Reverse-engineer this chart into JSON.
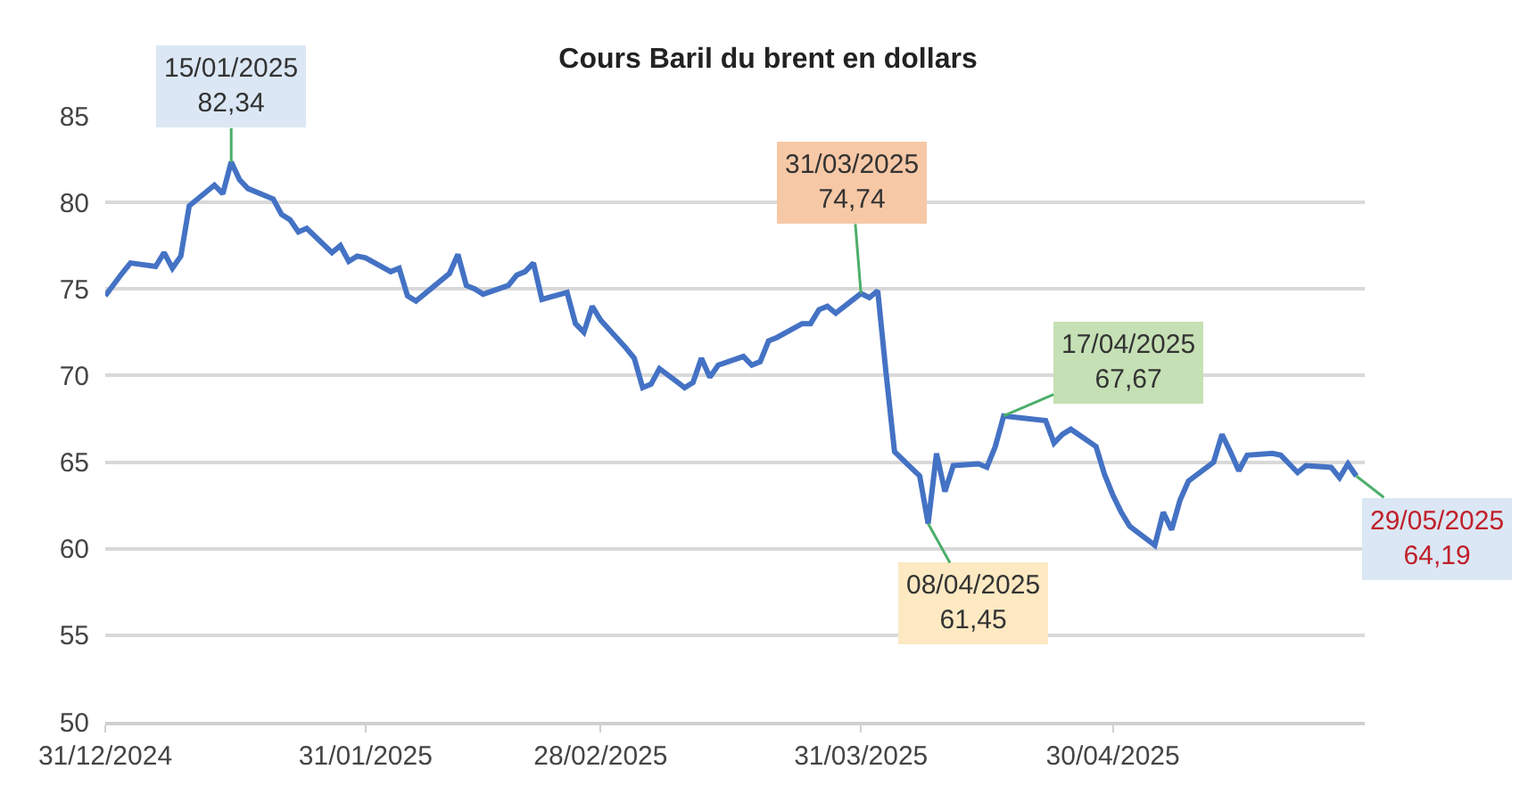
{
  "chart_data": {
    "type": "line",
    "title": "Cours Baril du brent en dollars",
    "x": [
      "2024-12-31",
      "2025-01-02",
      "2025-01-03",
      "2025-01-06",
      "2025-01-07",
      "2025-01-08",
      "2025-01-09",
      "2025-01-10",
      "2025-01-13",
      "2025-01-14",
      "2025-01-15",
      "2025-01-16",
      "2025-01-17",
      "2025-01-20",
      "2025-01-21",
      "2025-01-22",
      "2025-01-23",
      "2025-01-24",
      "2025-01-27",
      "2025-01-28",
      "2025-01-29",
      "2025-01-30",
      "2025-01-31",
      "2025-02-03",
      "2025-02-04",
      "2025-02-05",
      "2025-02-06",
      "2025-02-07",
      "2025-02-10",
      "2025-02-11",
      "2025-02-12",
      "2025-02-13",
      "2025-02-14",
      "2025-02-17",
      "2025-02-18",
      "2025-02-19",
      "2025-02-20",
      "2025-02-21",
      "2025-02-24",
      "2025-02-25",
      "2025-02-26",
      "2025-02-27",
      "2025-02-28",
      "2025-03-03",
      "2025-03-04",
      "2025-03-05",
      "2025-03-06",
      "2025-03-07",
      "2025-03-10",
      "2025-03-11",
      "2025-03-12",
      "2025-03-13",
      "2025-03-14",
      "2025-03-17",
      "2025-03-18",
      "2025-03-19",
      "2025-03-20",
      "2025-03-21",
      "2025-03-24",
      "2025-03-25",
      "2025-03-26",
      "2025-03-27",
      "2025-03-28",
      "2025-03-31",
      "2025-04-01",
      "2025-04-02",
      "2025-04-03",
      "2025-04-04",
      "2025-04-07",
      "2025-04-08",
      "2025-04-09",
      "2025-04-10",
      "2025-04-11",
      "2025-04-14",
      "2025-04-15",
      "2025-04-16",
      "2025-04-17",
      "2025-04-22",
      "2025-04-23",
      "2025-04-24",
      "2025-04-25",
      "2025-04-28",
      "2025-04-29",
      "2025-04-30",
      "2025-05-01",
      "2025-05-02",
      "2025-05-05",
      "2025-05-06",
      "2025-05-07",
      "2025-05-08",
      "2025-05-09",
      "2025-05-12",
      "2025-05-13",
      "2025-05-14",
      "2025-05-15",
      "2025-05-16",
      "2025-05-19",
      "2025-05-20",
      "2025-05-21",
      "2025-05-22",
      "2025-05-23",
      "2025-05-26",
      "2025-05-27",
      "2025-05-28",
      "2025-05-29"
    ],
    "series": [
      {
        "color": "#4472c4",
        "values": [
          74.6,
          75.9,
          76.5,
          76.3,
          77.1,
          76.2,
          76.9,
          79.8,
          81.0,
          80.5,
          82.34,
          81.3,
          80.8,
          80.2,
          79.3,
          79.0,
          78.3,
          78.5,
          77.1,
          77.5,
          76.6,
          76.9,
          76.8,
          76.0,
          76.2,
          74.6,
          74.3,
          74.7,
          75.9,
          77.0,
          75.2,
          75.0,
          74.7,
          75.2,
          75.8,
          76.0,
          76.5,
          74.4,
          74.8,
          73.0,
          72.5,
          74.0,
          73.2,
          71.6,
          71.0,
          69.3,
          69.5,
          70.4,
          69.3,
          69.6,
          71.0,
          69.9,
          70.6,
          71.1,
          70.6,
          70.8,
          72.0,
          72.2,
          73.0,
          73.0,
          73.8,
          74.0,
          73.6,
          74.74,
          74.5,
          74.9,
          70.1,
          65.6,
          64.2,
          61.45,
          65.5,
          63.3,
          64.8,
          64.9,
          64.7,
          65.9,
          67.67,
          67.4,
          66.1,
          66.6,
          66.9,
          65.9,
          64.3,
          63.1,
          62.1,
          61.3,
          60.2,
          62.1,
          61.1,
          62.8,
          63.9,
          65.0,
          66.6,
          65.6,
          64.5,
          65.4,
          65.5,
          65.4,
          64.9,
          64.4,
          64.8,
          64.7,
          64.1,
          64.9,
          64.19
        ]
      }
    ],
    "xlim": [
      "2024-12-31",
      "2025-05-30"
    ],
    "xticks": [
      {
        "value": "2024-12-31",
        "label": "31/12/2024"
      },
      {
        "value": "2025-01-31",
        "label": "31/01/2025"
      },
      {
        "value": "2025-02-28",
        "label": "28/02/2025"
      },
      {
        "value": "2025-03-31",
        "label": "31/03/2025"
      },
      {
        "value": "2025-04-30",
        "label": "30/04/2025"
      }
    ],
    "ylim": [
      50,
      85
    ],
    "yticks": [
      50,
      55,
      60,
      65,
      70,
      75,
      80,
      85
    ],
    "grid": "y",
    "annotations": [
      {
        "text": "15/01/2025\n82,34",
        "x": "2025-01-15",
        "y": 82.34
      },
      {
        "text": "31/03/2025\n74,74",
        "x": "2025-03-31",
        "y": 74.74
      },
      {
        "text": "08/04/2025\n61,45",
        "x": "2025-04-08",
        "y": 61.45
      },
      {
        "text": "17/04/2025\n67,67",
        "x": "2025-04-17",
        "y": 67.67
      },
      {
        "text": "29/05/2025\n64,19",
        "x": "2025-05-29",
        "y": 64.19
      }
    ]
  }
}
